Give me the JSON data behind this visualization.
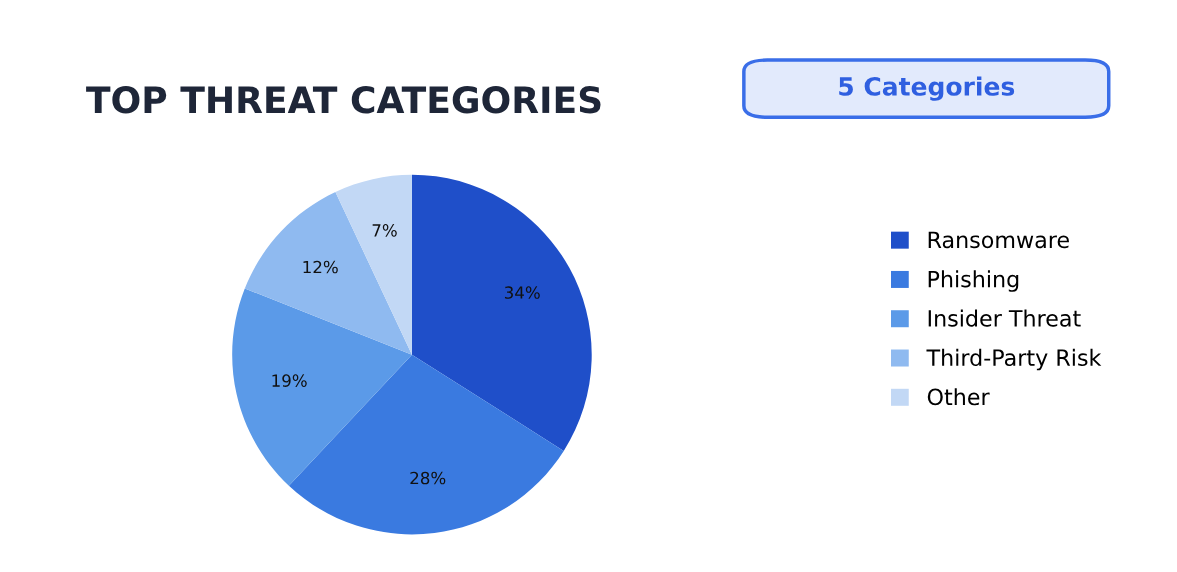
{
  "chart_data": {
    "type": "pie",
    "title": "TOP THREAT CATEGORIES",
    "annotations": [
      "5 Categories"
    ],
    "categories": [
      "Ransomware",
      "Phishing",
      "Insider Threat",
      "Third-Party Risk",
      "Other"
    ],
    "values": [
      34,
      28,
      19,
      12,
      7
    ],
    "value_labels": [
      "34%",
      "28%",
      "19%",
      "12%",
      "7%"
    ],
    "colors": [
      "#1f4fc9",
      "#3a7ae0",
      "#5b9ae8",
      "#8fbaf0",
      "#c2d8f5"
    ],
    "legend": "right"
  }
}
